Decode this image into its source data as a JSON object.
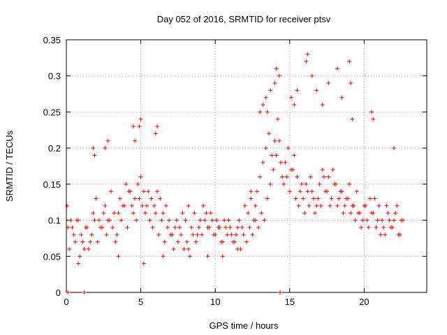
{
  "chart_data": {
    "type": "scatter",
    "title": "Day 052 of 2016, SRMTID for receiver ptsv",
    "xlabel": "GPS time / hours",
    "ylabel": "SRMTID / TECUs",
    "xlim": [
      0,
      24.2
    ],
    "ylim": [
      0,
      0.35
    ],
    "xticks": [
      0,
      5,
      10,
      15,
      20
    ],
    "xtick_labels": [
      "0",
      "5",
      "10",
      "15",
      "20"
    ],
    "yticks": [
      0,
      0.05,
      0.1,
      0.15,
      0.2,
      0.25,
      0.3,
      0.35
    ],
    "ytick_labels": [
      "0",
      "0.05",
      "0.1",
      "0.15",
      "0.2",
      "0.25",
      "0.3",
      "0.35"
    ],
    "grid": true,
    "series": [
      {
        "name": "SRMTID",
        "color": "#ff0000",
        "marker": "plus",
        "x": [
          0.05,
          0.2,
          0.4,
          0.6,
          0.8,
          1.0,
          1.2,
          1.4,
          1.6,
          1.8,
          2.0,
          2.2,
          2.4,
          2.6,
          2.8,
          3.0,
          3.2,
          3.4,
          3.6,
          3.8,
          4.0,
          4.2,
          4.4,
          4.6,
          4.8,
          5.0,
          5.2,
          5.4,
          5.6,
          5.8,
          6.0,
          6.2,
          6.4,
          6.6,
          6.8,
          7.0,
          7.2,
          7.4,
          7.6,
          7.8,
          8.0,
          8.2,
          8.4,
          8.6,
          8.8,
          9.0,
          9.2,
          9.4,
          9.6,
          9.8,
          10.0,
          10.2,
          10.4,
          10.6,
          10.8,
          11.0,
          11.2,
          11.4,
          11.6,
          11.8,
          12.0,
          12.2,
          12.4,
          12.6,
          12.8,
          13.0,
          13.2,
          13.4,
          13.6,
          13.8,
          14.0,
          14.2,
          14.4,
          14.6,
          14.8,
          15.0,
          15.2,
          15.4,
          15.6,
          15.8,
          16.0,
          16.2,
          16.4,
          16.6,
          16.8,
          17.0,
          17.2,
          17.4,
          17.6,
          17.8,
          18.0,
          18.2,
          18.4,
          18.6,
          18.8,
          19.0,
          19.2,
          19.4,
          19.6,
          19.8,
          20.0,
          20.2,
          20.4,
          20.6,
          20.8,
          21.0,
          21.2,
          21.4,
          21.6,
          21.8,
          22.0,
          22.2,
          22.4,
          22.6,
          0.1,
          0.3,
          0.5,
          0.7,
          0.9,
          1.1,
          1.3,
          1.5,
          1.7,
          1.9,
          2.1,
          2.3,
          2.5,
          2.7,
          2.9,
          3.1,
          3.3,
          3.5,
          3.7,
          3.9,
          4.1,
          4.3,
          4.5,
          4.7,
          4.9,
          5.1,
          5.3,
          5.5,
          5.7,
          5.9,
          6.1,
          6.3,
          6.5,
          6.7,
          6.9,
          7.1,
          7.3,
          7.5,
          7.7,
          7.9,
          8.1,
          8.3,
          8.5,
          8.7,
          8.9,
          9.1,
          9.3,
          9.5,
          9.7,
          9.9,
          10.1,
          10.3,
          10.5,
          10.7,
          10.9,
          11.1,
          11.3,
          11.5,
          11.7,
          11.9,
          12.1,
          12.3,
          12.5,
          12.7,
          12.9,
          13.1,
          13.3,
          13.5,
          13.7,
          13.9,
          14.1,
          14.3,
          14.5,
          14.7,
          14.9,
          15.1,
          15.3,
          15.5,
          15.7,
          15.9,
          16.1,
          16.3,
          16.5,
          16.7,
          16.9,
          17.1,
          17.3,
          17.5,
          17.7,
          17.9,
          18.1,
          18.3,
          18.5,
          18.7,
          18.9,
          19.1,
          19.3,
          19.5,
          19.7,
          19.9,
          20.1,
          20.3,
          20.5,
          20.7,
          20.9,
          21.1,
          21.3,
          21.5,
          21.7,
          21.9,
          22.1,
          22.3,
          22.5,
          1.8,
          1.9,
          2.6,
          2.8,
          4.5,
          4.6,
          4.9,
          5.0,
          6.0,
          6.1,
          13.0,
          13.2,
          13.4,
          13.5,
          13.7,
          14.0,
          14.1,
          14.3,
          15.1,
          15.3,
          15.5,
          16.1,
          16.2,
          16.5,
          16.8,
          17.2,
          17.6,
          18.2,
          18.5,
          19.0,
          19.1,
          19.2,
          20.5,
          20.6,
          22.0,
          12.4,
          12.7,
          8.2,
          9.5,
          10.5,
          11.5,
          6.5,
          5.2,
          3.5,
          0.8
        ],
        "y": [
          0.12,
          0.06,
          0.09,
          0.07,
          0.1,
          0.08,
          0.06,
          0.09,
          0.07,
          0.11,
          0.13,
          0.1,
          0.09,
          0.12,
          0.1,
          0.14,
          0.11,
          0.08,
          0.13,
          0.12,
          0.15,
          0.14,
          0.12,
          0.13,
          0.15,
          0.16,
          0.14,
          0.12,
          0.1,
          0.09,
          0.11,
          0.08,
          0.1,
          0.07,
          0.09,
          0.08,
          0.06,
          0.1,
          0.09,
          0.11,
          0.1,
          0.12,
          0.09,
          0.11,
          0.08,
          0.1,
          0.12,
          0.11,
          0.09,
          0.1,
          0.08,
          0.09,
          0.07,
          0.1,
          0.08,
          0.09,
          0.07,
          0.08,
          0.1,
          0.09,
          0.12,
          0.11,
          0.13,
          0.1,
          0.14,
          0.16,
          0.18,
          0.2,
          0.22,
          0.19,
          0.21,
          0.24,
          0.18,
          0.15,
          0.16,
          0.14,
          0.17,
          0.13,
          0.12,
          0.15,
          0.11,
          0.14,
          0.16,
          0.13,
          0.12,
          0.15,
          0.17,
          0.14,
          0.16,
          0.13,
          0.15,
          0.12,
          0.14,
          0.11,
          0.13,
          0.15,
          0.12,
          0.1,
          0.11,
          0.09,
          0.12,
          0.1,
          0.13,
          0.11,
          0.09,
          0.12,
          0.1,
          0.08,
          0.11,
          0.09,
          0.1,
          0.12,
          0.08,
          0.1,
          0.09,
          0.1,
          0.08,
          0.1,
          0.05,
          0.07,
          0.09,
          0.06,
          0.08,
          0.1,
          0.07,
          0.09,
          0.11,
          0.08,
          0.1,
          0.09,
          0.07,
          0.11,
          0.1,
          0.12,
          0.09,
          0.14,
          0.11,
          0.1,
          0.13,
          0.12,
          0.11,
          0.14,
          0.13,
          0.12,
          0.14,
          0.13,
          0.11,
          0.12,
          0.1,
          0.08,
          0.09,
          0.07,
          0.08,
          0.06,
          0.07,
          0.05,
          0.08,
          0.07,
          0.09,
          0.08,
          0.1,
          0.09,
          0.11,
          0.08,
          0.1,
          0.09,
          0.07,
          0.09,
          0.1,
          0.08,
          0.07,
          0.09,
          0.06,
          0.08,
          0.07,
          0.09,
          0.08,
          0.1,
          0.09,
          0.11,
          0.1,
          0.13,
          0.15,
          0.17,
          0.19,
          0.21,
          0.16,
          0.18,
          0.2,
          0.17,
          0.19,
          0.16,
          0.14,
          0.13,
          0.15,
          0.12,
          0.14,
          0.11,
          0.13,
          0.12,
          0.16,
          0.14,
          0.12,
          0.17,
          0.15,
          0.13,
          0.14,
          0.12,
          0.13,
          0.11,
          0.12,
          0.14,
          0.11,
          0.1,
          0.12,
          0.09,
          0.11,
          0.13,
          0.1,
          0.08,
          0.09,
          0.12,
          0.1,
          0.09,
          0.11,
          0.08,
          0.1,
          0.2,
          0.19,
          0.2,
          0.21,
          0.23,
          0.21,
          0.23,
          0.24,
          0.22,
          0.23,
          0.25,
          0.26,
          0.27,
          0.25,
          0.28,
          0.29,
          0.31,
          0.3,
          0.27,
          0.26,
          0.28,
          0.32,
          0.33,
          0.3,
          0.28,
          0.26,
          0.29,
          0.31,
          0.27,
          0.32,
          0.29,
          0.24,
          0.25,
          0.24,
          0.2,
          0.14,
          0.12,
          0.06,
          0.05,
          0.05,
          0.06,
          0.05,
          0.04,
          0.05,
          0.04
        ],
        "special_points": {
          "x": [
            0.1,
            1.2,
            14.35
          ],
          "y": [
            0,
            0,
            0
          ]
        }
      }
    ]
  }
}
